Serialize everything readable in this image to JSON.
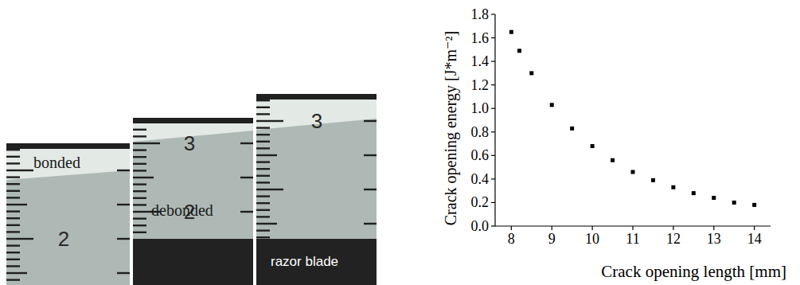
{
  "chart_data": {
    "type": "scatter",
    "x": [
      8,
      8.2,
      8.5,
      9,
      9.5,
      10,
      10.5,
      11,
      11.5,
      12,
      12.5,
      13,
      13.5,
      14
    ],
    "values": [
      1.65,
      1.49,
      1.3,
      1.03,
      0.83,
      0.68,
      0.56,
      0.46,
      0.39,
      0.33,
      0.28,
      0.24,
      0.2,
      0.18
    ],
    "color": "#000000",
    "marker": "square",
    "xlabel": "Crack opening length [mm]",
    "ylabel": "Crack opening energy [J*m⁻²]",
    "xlim": [
      7.6,
      14.4
    ],
    "ylim": [
      0,
      1.8
    ],
    "xticks": [
      8,
      9,
      10,
      11,
      12,
      13,
      14
    ],
    "yticks": [
      {
        "value": 0,
        "label": "0.0"
      },
      0.2,
      0.4,
      0.6,
      0.8,
      {
        "value": 1,
        "label": "1.0"
      },
      1.2,
      1.4,
      1.6,
      1.8
    ]
  },
  "photos": [
    {
      "label": "bonded",
      "numbers": [
        2
      ]
    },
    {
      "label": "debonded",
      "numbers": [
        3,
        2
      ]
    },
    {
      "label": "razor blade",
      "numbers": [
        3
      ]
    }
  ]
}
